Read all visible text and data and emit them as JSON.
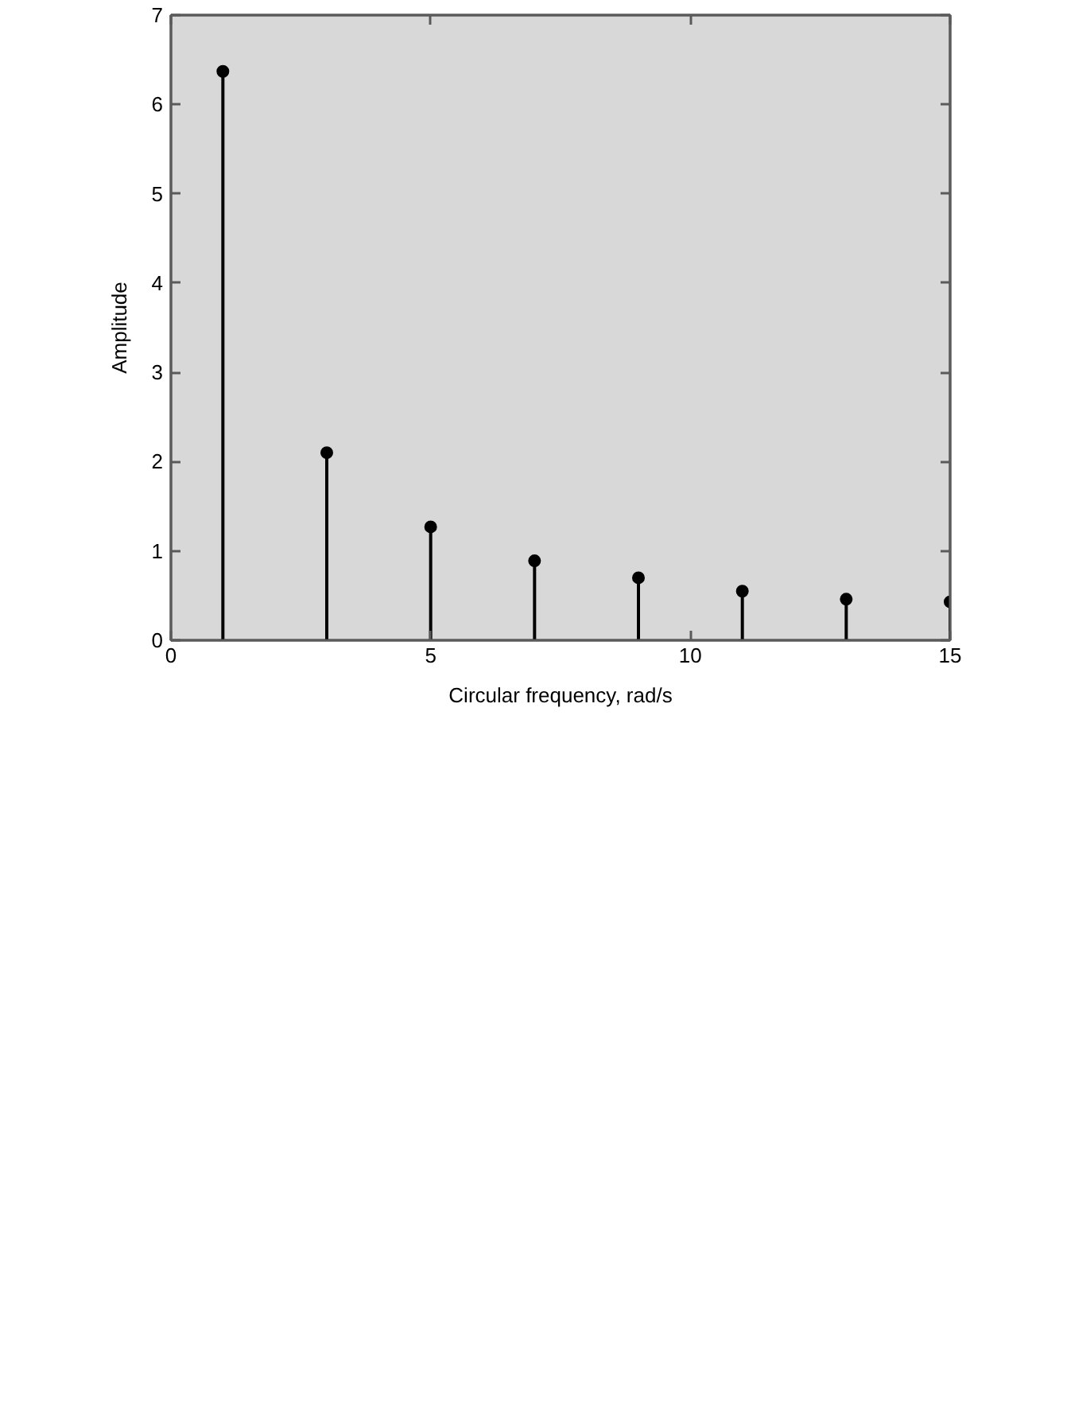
{
  "chart_data": {
    "type": "lollipop",
    "xlabel": "Circular frequency, rad/s",
    "ylabel": "Amplitude",
    "x": [
      1,
      3,
      5,
      7,
      9,
      11,
      13,
      15
    ],
    "values": [
      6.37,
      2.1,
      1.27,
      0.89,
      0.7,
      0.55,
      0.46,
      0.43
    ],
    "color": "#000000",
    "marker": "circle",
    "xlim": [
      0,
      15
    ],
    "ylim": [
      0,
      7
    ],
    "xticks": [
      0,
      5,
      10,
      15
    ],
    "yticks": [
      0,
      1,
      2,
      3,
      4,
      5,
      6,
      7
    ]
  }
}
